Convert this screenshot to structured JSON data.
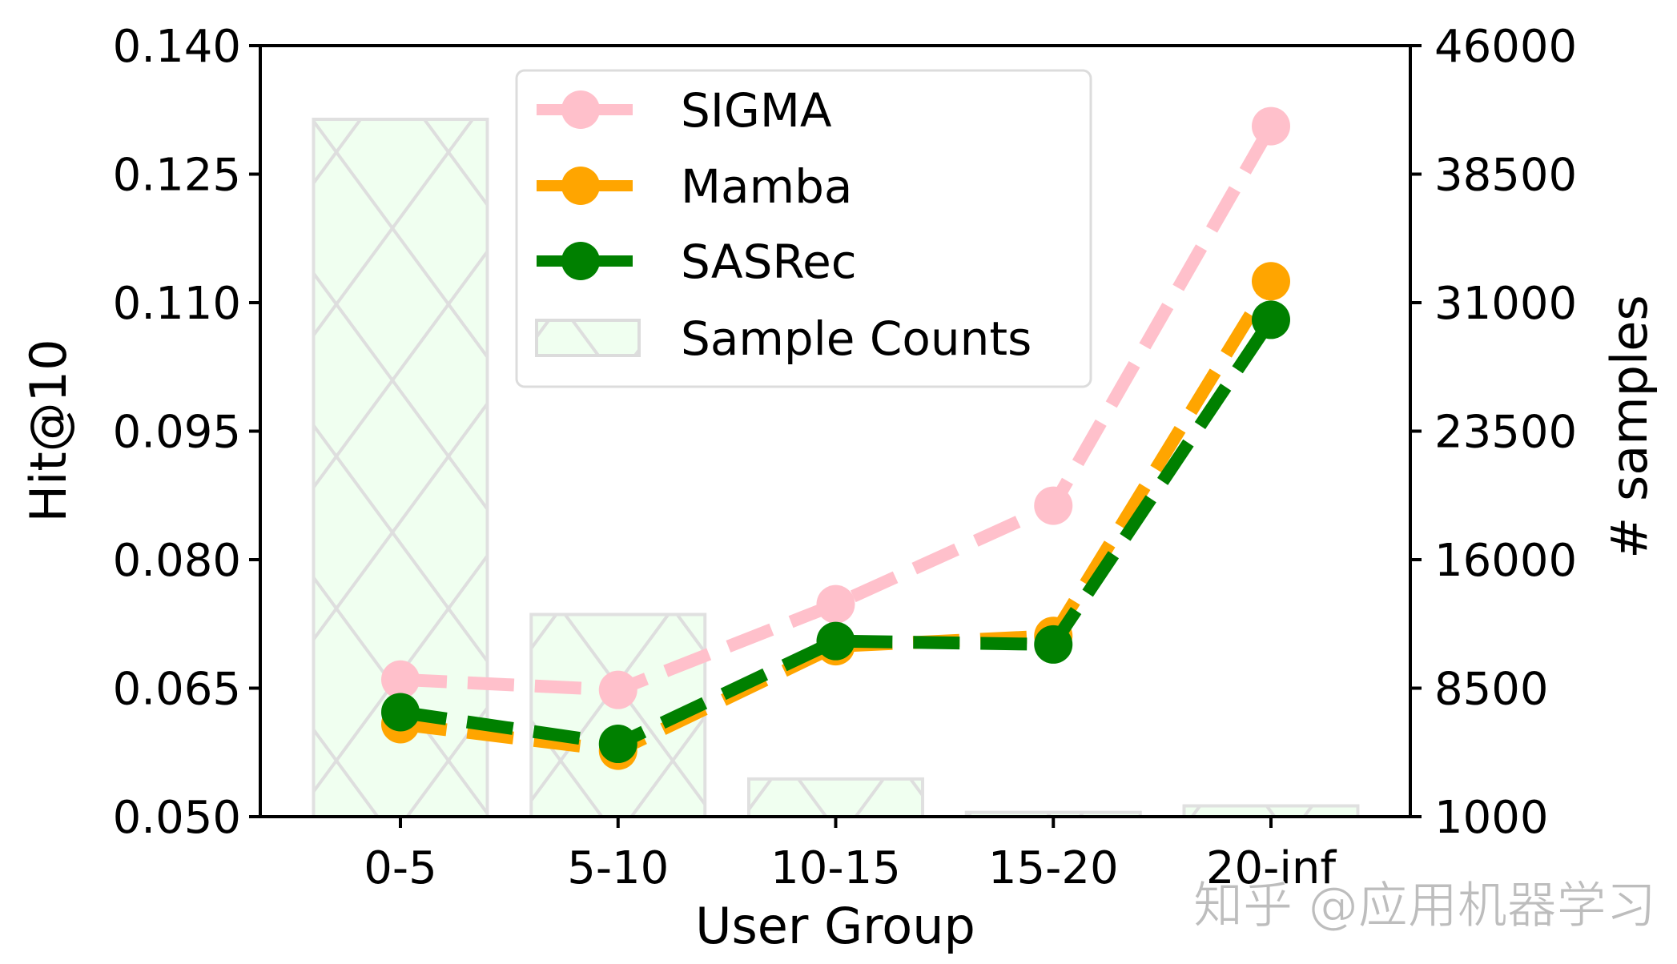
{
  "chart_data": {
    "type": "line",
    "title": "",
    "xlabel": "User Group",
    "ylabel": "Hit@10",
    "y2label": "# samples",
    "categories": [
      "0-5",
      "5-10",
      "10-15",
      "15-20",
      "20-inf"
    ],
    "ylim": [
      0.05,
      0.14
    ],
    "yticks": [
      "0.050",
      "0.065",
      "0.080",
      "0.095",
      "0.110",
      "0.125",
      "0.140"
    ],
    "y2lim": [
      1000,
      46000
    ],
    "y2ticks": [
      "1000",
      "8500",
      "16000",
      "23500",
      "31000",
      "38500",
      "46000"
    ],
    "grid": false,
    "legend_position": "upper-center",
    "series": [
      {
        "name": "SIGMA",
        "color": "#ffc0cb",
        "style": "dashed",
        "marker": "circle",
        "values": [
          0.066,
          0.0648,
          0.0748,
          0.0863,
          0.1306
        ]
      },
      {
        "name": "Mamba",
        "color": "#ffa500",
        "style": "dashed",
        "marker": "circle",
        "values": [
          0.0608,
          0.0577,
          0.0699,
          0.0711,
          0.1125
        ]
      },
      {
        "name": "SASRec",
        "color": "#008000",
        "style": "dashed",
        "marker": "circle",
        "values": [
          0.0622,
          0.0585,
          0.0705,
          0.0701,
          0.108
        ]
      }
    ],
    "bars": {
      "name": "Sample Counts",
      "axis": "right",
      "fill": "#f0fff0",
      "edge": "#e0e0e0",
      "hatch": "x",
      "values": [
        41700,
        12800,
        3200,
        1250,
        1630
      ]
    }
  },
  "watermark": "知乎 @应用机器学习"
}
